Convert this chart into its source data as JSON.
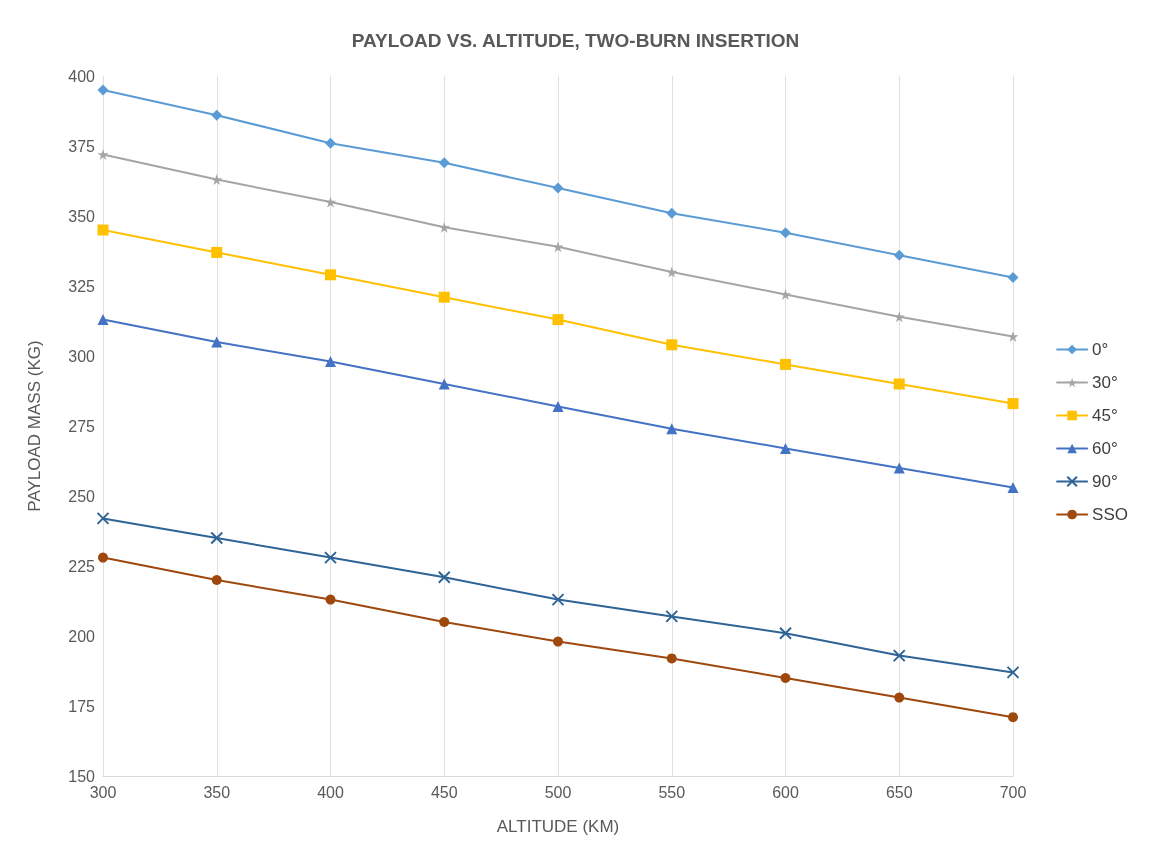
{
  "chart_data": {
    "type": "line",
    "title": "PAYLOAD VS. ALTITUDE, TWO-BURN INSERTION",
    "xlabel": "ALTITUDE (KM)",
    "ylabel": "PAYLOAD MASS (KG)",
    "x": [
      300,
      350,
      400,
      450,
      500,
      550,
      600,
      650,
      700
    ],
    "series": [
      {
        "name": "0°",
        "color": "#5b9bd5",
        "marker": "diamond",
        "values": [
          395,
          386,
          376,
          369,
          360,
          351,
          344,
          336,
          328
        ]
      },
      {
        "name": "30°",
        "color": "#a5a5a5",
        "marker": "star",
        "values": [
          372,
          363,
          355,
          346,
          339,
          330,
          322,
          314,
          307
        ]
      },
      {
        "name": "45°",
        "color": "#ffc000",
        "marker": "square",
        "values": [
          345,
          337,
          329,
          321,
          313,
          304,
          297,
          290,
          283
        ]
      },
      {
        "name": "60°",
        "color": "#4472c4",
        "marker": "triangle",
        "values": [
          313,
          305,
          298,
          290,
          282,
          274,
          267,
          260,
          253
        ]
      },
      {
        "name": "90°",
        "color": "#2e6496",
        "marker": "cross",
        "values": [
          242,
          235,
          228,
          221,
          213,
          207,
          201,
          193,
          187
        ]
      },
      {
        "name": "SSO",
        "color": "#9e480e",
        "marker": "circle",
        "values": [
          228,
          220,
          213,
          205,
          198,
          192,
          185,
          178,
          171
        ]
      }
    ],
    "xlim": [
      300,
      700
    ],
    "xticks": [
      300,
      350,
      400,
      450,
      500,
      550,
      600,
      650,
      700
    ],
    "ylim": [
      150,
      400
    ],
    "yticks": [
      150,
      175,
      200,
      225,
      250,
      275,
      300,
      325,
      350,
      375,
      400
    ],
    "grid": "x",
    "legend": "right",
    "line_style": "solid"
  }
}
